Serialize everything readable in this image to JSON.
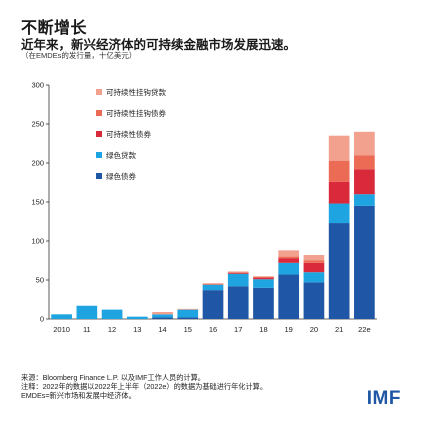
{
  "header": {
    "title": "不断增长",
    "subtitle": "近年来，新兴经济体的可持续金融市场发展迅速。",
    "unit": "（在EMDEs的发行量，十亿美元）"
  },
  "footer": {
    "source": "来源：Bloomberg Finance L.P. 以及IMF工作人员的计算。",
    "note": "注释：2022年的数据以2022年上半年（2022e）的数据为基础进行年化计算。",
    "abbrev": "EMDEs=新兴市场和发展中经济体。",
    "logo": "IMF"
  },
  "chart_data": {
    "type": "bar",
    "stacked": true,
    "categories": [
      "2010",
      "11",
      "12",
      "13",
      "14",
      "15",
      "16",
      "17",
      "18",
      "19",
      "20",
      "21",
      "22e"
    ],
    "ylim": [
      0,
      300
    ],
    "yticks": [
      0,
      50,
      100,
      150,
      200,
      250,
      300
    ],
    "grid": false,
    "legend_position": "top-left",
    "series": [
      {
        "name": "绿色债券",
        "color": "#1f56a5",
        "values": [
          0,
          0,
          0,
          0,
          2,
          2,
          37,
          42,
          40,
          57,
          47,
          123,
          145
        ]
      },
      {
        "name": "绿色贷款",
        "color": "#1ea4e0",
        "values": [
          6,
          17,
          12,
          3,
          4,
          10,
          7,
          16,
          11,
          15,
          13,
          25,
          15
        ]
      },
      {
        "name": "可持续性债券",
        "color": "#d9293a",
        "values": [
          0,
          0,
          0,
          0,
          0,
          0,
          0,
          1,
          2,
          6,
          12,
          28,
          32
        ]
      },
      {
        "name": "可持续性挂钩债券",
        "color": "#eb6b55",
        "values": [
          0,
          0,
          0,
          0,
          0,
          0,
          1,
          1,
          1,
          2,
          3,
          27,
          18
        ]
      },
      {
        "name": "可持续性挂钩贷款",
        "color": "#f2a18f",
        "values": [
          0,
          0,
          0,
          0,
          3,
          1,
          1,
          1,
          1,
          8,
          7,
          32,
          30
        ]
      }
    ]
  }
}
